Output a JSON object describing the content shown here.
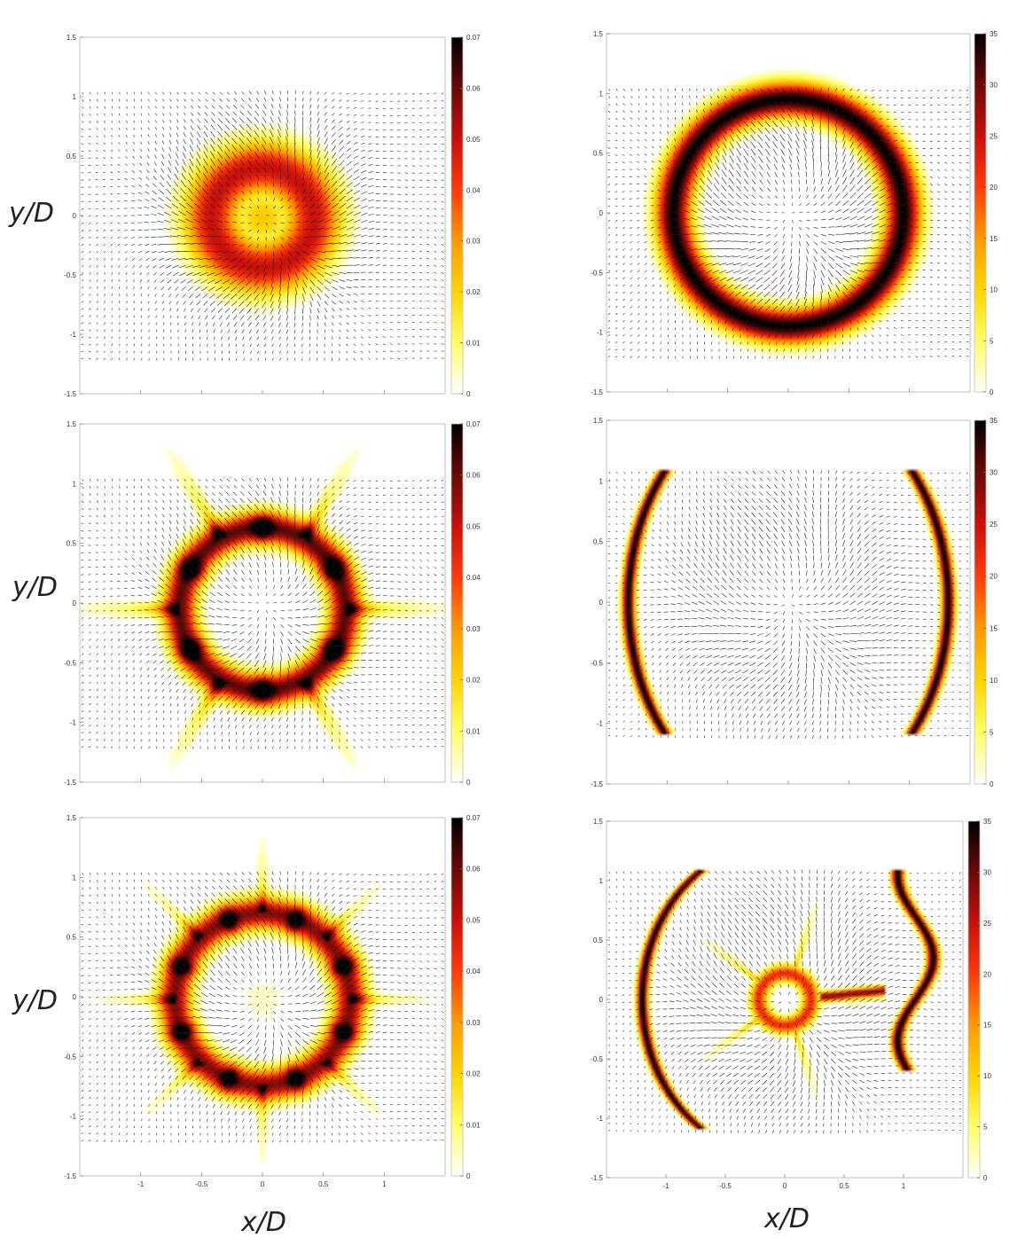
{
  "axis_labels": {
    "y": "y/D",
    "x": "x/D"
  },
  "colors": {
    "colormap": [
      "#ffffff",
      "#ffff66",
      "#ffd400",
      "#ff9a00",
      "#ff3b0a",
      "#c9100a",
      "#6a0a07",
      "#000000"
    ]
  },
  "chart_data": [
    {
      "type": "heatmap",
      "panel": "top-left",
      "pattern": "ring",
      "ring": {
        "cx": 0.0,
        "cy": -0.02,
        "r_peak": 0.42,
        "width": 0.22,
        "peak": 0.05,
        "center": 0.022,
        "center_w": 0.25,
        "lobes": 0,
        "lobe_amp": 0,
        "lobe_len": 0
      },
      "xlim": [
        -1.5,
        1.5
      ],
      "ylim": [
        -1.5,
        1.5
      ],
      "xticks": [
        -1,
        -0.5,
        0,
        0.5,
        1
      ],
      "yticks": [
        1.5,
        1,
        0.5,
        0,
        -0.5,
        -1,
        -1.5
      ],
      "show_xtick_labels": false,
      "colorbar": {
        "min": 0,
        "max": 0.07,
        "ticks": [
          "0",
          "0.01",
          "0.02",
          "0.03",
          "0.04",
          "0.05",
          "0.06",
          "0.07"
        ]
      }
    },
    {
      "type": "heatmap",
      "panel": "top-right",
      "pattern": "ring",
      "ring": {
        "cx": 0.0,
        "cy": 0.0,
        "r_peak": 0.95,
        "width": 0.14,
        "peak": 35,
        "center": 0,
        "center_w": 0.2,
        "lobes": 0,
        "lobe_amp": 0,
        "lobe_len": 0
      },
      "xlim": [
        -1.5,
        1.5
      ],
      "ylim": [
        -1.5,
        1.5
      ],
      "xticks": [
        -1,
        -0.5,
        0,
        0.5,
        1
      ],
      "yticks": [
        1.5,
        1,
        0.5,
        0,
        -0.5,
        -1,
        -1.5
      ],
      "show_xtick_labels": false,
      "colorbar": {
        "min": 0,
        "max": 35,
        "ticks": [
          "0",
          "5",
          "10",
          "15",
          "20",
          "25",
          "30",
          "35"
        ]
      }
    },
    {
      "type": "heatmap",
      "panel": "middle-left",
      "pattern": "ring",
      "ring": {
        "cx": 0.0,
        "cy": -0.05,
        "r_peak": 0.68,
        "width": 0.13,
        "peak": 0.075,
        "center": 0.0,
        "center_w": 0.2,
        "lobes": 6,
        "lobe_amp": 0.04,
        "lobe_len": 0.35
      },
      "xlim": [
        -1.5,
        1.5
      ],
      "ylim": [
        -1.5,
        1.5
      ],
      "xticks": [
        -1,
        -0.5,
        0,
        0.5,
        1
      ],
      "yticks": [
        1.5,
        1,
        0.5,
        0,
        -0.5,
        -1,
        -1.5
      ],
      "show_xtick_labels": false,
      "colorbar": {
        "min": 0,
        "max": 0.07,
        "ticks": [
          "0",
          "0.01",
          "0.02",
          "0.03",
          "0.04",
          "0.05",
          "0.06",
          "0.07"
        ]
      }
    },
    {
      "type": "heatmap",
      "panel": "middle-right",
      "pattern": "arcs",
      "ring": {
        "cx": 0.0,
        "cy": 0.0,
        "r_peak": 1.32,
        "width": 0.05,
        "peak": 36,
        "center": 0,
        "center_w": 0.2,
        "lobes": 0,
        "lobe_amp": 0,
        "lobe_len": 0
      },
      "xlim": [
        -1.5,
        1.5
      ],
      "ylim": [
        -1.5,
        1.5
      ],
      "xticks": [
        -1,
        -0.5,
        0,
        0.5,
        1
      ],
      "yticks": [
        1.5,
        1,
        0.5,
        0,
        -0.5,
        -1,
        -1.5
      ],
      "show_xtick_labels": false,
      "colorbar": {
        "min": 0,
        "max": 35,
        "ticks": [
          "0",
          "5",
          "10",
          "15",
          "20",
          "25",
          "30",
          "35"
        ]
      }
    },
    {
      "type": "heatmap",
      "panel": "bottom-left",
      "pattern": "ring",
      "ring": {
        "cx": 0.0,
        "cy": -0.02,
        "r_peak": 0.72,
        "width": 0.13,
        "peak": 0.07,
        "center": 0.004,
        "center_w": 0.3,
        "lobes": 8,
        "lobe_amp": 0.03,
        "lobe_len": 0.3
      },
      "xlim": [
        -1.5,
        1.5
      ],
      "ylim": [
        -1.5,
        1.5
      ],
      "xticks": [
        -1,
        -0.5,
        0,
        0.5,
        1
      ],
      "yticks": [
        1.5,
        1,
        0.5,
        0,
        -0.5,
        -1,
        -1.5
      ],
      "show_xtick_labels": true,
      "colorbar": {
        "min": 0,
        "max": 0.07,
        "ticks": [
          "0",
          "0.01",
          "0.02",
          "0.03",
          "0.04",
          "0.05",
          "0.06",
          "0.07"
        ]
      }
    },
    {
      "type": "heatmap",
      "panel": "bottom-right",
      "pattern": "complex",
      "ring": {
        "cx": 0.0,
        "cy": 0.0,
        "r_peak": 1.32,
        "width": 0.05,
        "peak": 36,
        "center": 0,
        "center_w": 0.2,
        "lobes": 0,
        "lobe_amp": 0,
        "lobe_len": 0
      },
      "xlim": [
        -1.5,
        1.5
      ],
      "ylim": [
        -1.5,
        1.5
      ],
      "xticks": [
        -1,
        -0.5,
        0,
        0.5,
        1
      ],
      "yticks": [
        1.5,
        1,
        0.5,
        0,
        -0.5,
        -1,
        -1.5
      ],
      "show_xtick_labels": true,
      "colorbar": {
        "min": 0,
        "max": 35,
        "ticks": [
          "0",
          "5",
          "10",
          "15",
          "20",
          "25",
          "30",
          "35"
        ]
      }
    }
  ]
}
